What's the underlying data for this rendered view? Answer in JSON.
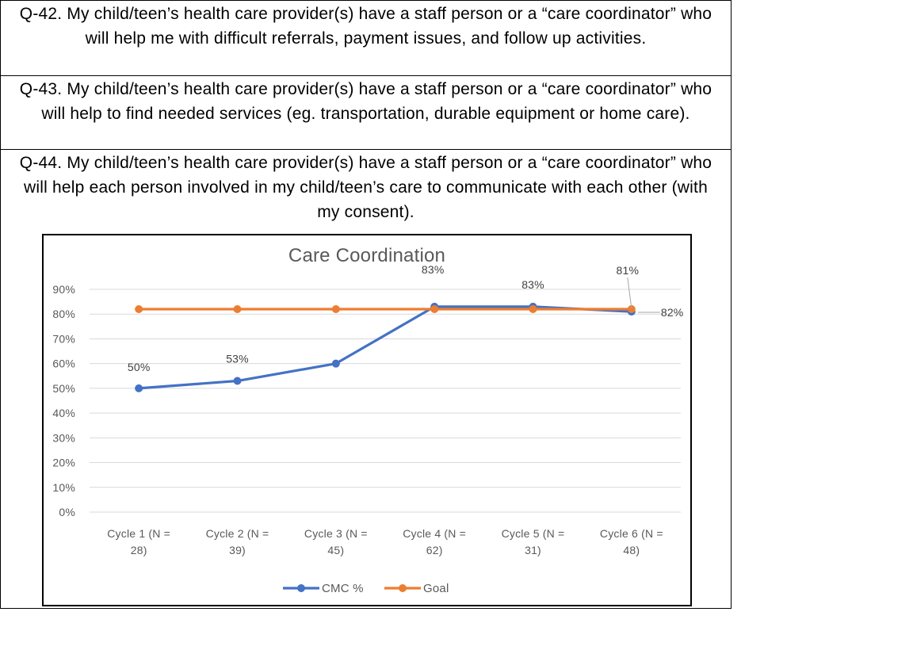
{
  "questions": [
    {
      "id": "q42",
      "text": "Q-42. My child/teen’s health care provider(s) have a staff person or a “care coordinator” who will help me with difficult referrals, payment issues, and follow up activities."
    },
    {
      "id": "q43",
      "text": "Q-43. My child/teen’s health care provider(s) have a staff person or a “care coordinator” who will help to find needed services (eg. transportation, durable equipment or home care)."
    },
    {
      "id": "q44",
      "text": "Q-44. My child/teen’s health care provider(s) have a staff person or a “care coordinator” who will help each person involved in my child/teen’s care to communicate with each other (with my consent)."
    }
  ],
  "chart_data": {
    "type": "line",
    "title": "Care Coordination",
    "xlabel": "",
    "ylabel": "",
    "ylim": [
      0,
      90
    ],
    "yticks": [
      "0%",
      "10%",
      "20%",
      "30%",
      "40%",
      "50%",
      "60%",
      "70%",
      "80%",
      "90%"
    ],
    "grid": true,
    "legend_position": "bottom",
    "categories": [
      [
        "Cycle 1 (N =",
        "28)"
      ],
      [
        "Cycle 2 (N =",
        "39)"
      ],
      [
        "Cycle 3 (N =",
        "45)"
      ],
      [
        "Cycle 4 (N =",
        "62)"
      ],
      [
        "Cycle 5 (N =",
        "31)"
      ],
      [
        "Cycle 6 (N =",
        "48)"
      ]
    ],
    "series": [
      {
        "name": "CMC %",
        "color": "#4472C4",
        "values": [
          50,
          53,
          60,
          83,
          83,
          81
        ],
        "labels": [
          "50%",
          "53%",
          "",
          "83%",
          "83%",
          "81%"
        ]
      },
      {
        "name": "Goal",
        "color": "#ED7D31",
        "values": [
          82,
          82,
          82,
          82,
          82,
          82
        ],
        "labels": [
          "",
          "",
          "",
          "",
          "",
          "82%"
        ]
      }
    ]
  }
}
